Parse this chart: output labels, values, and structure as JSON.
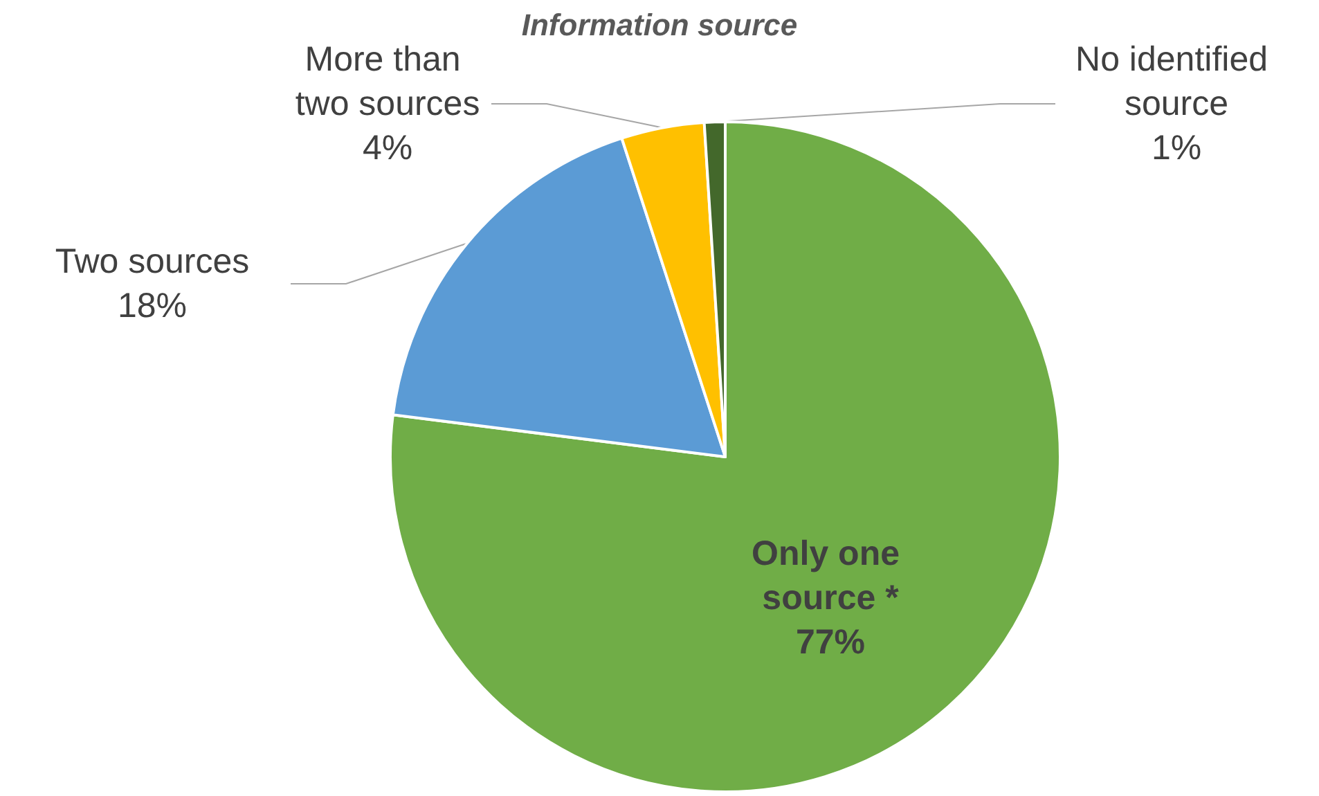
{
  "chart_data": {
    "type": "pie",
    "title": "Information source",
    "categories": [
      "Only one source *",
      "Two sources",
      "More than two sources",
      "No identified source"
    ],
    "values": [
      77,
      18,
      4,
      1
    ],
    "colors": [
      "#70ad47",
      "#5b9bd5",
      "#ffc000",
      "#43682b"
    ],
    "value_labels": [
      "77%",
      "18%",
      "4%",
      "1%"
    ],
    "legend": false
  }
}
